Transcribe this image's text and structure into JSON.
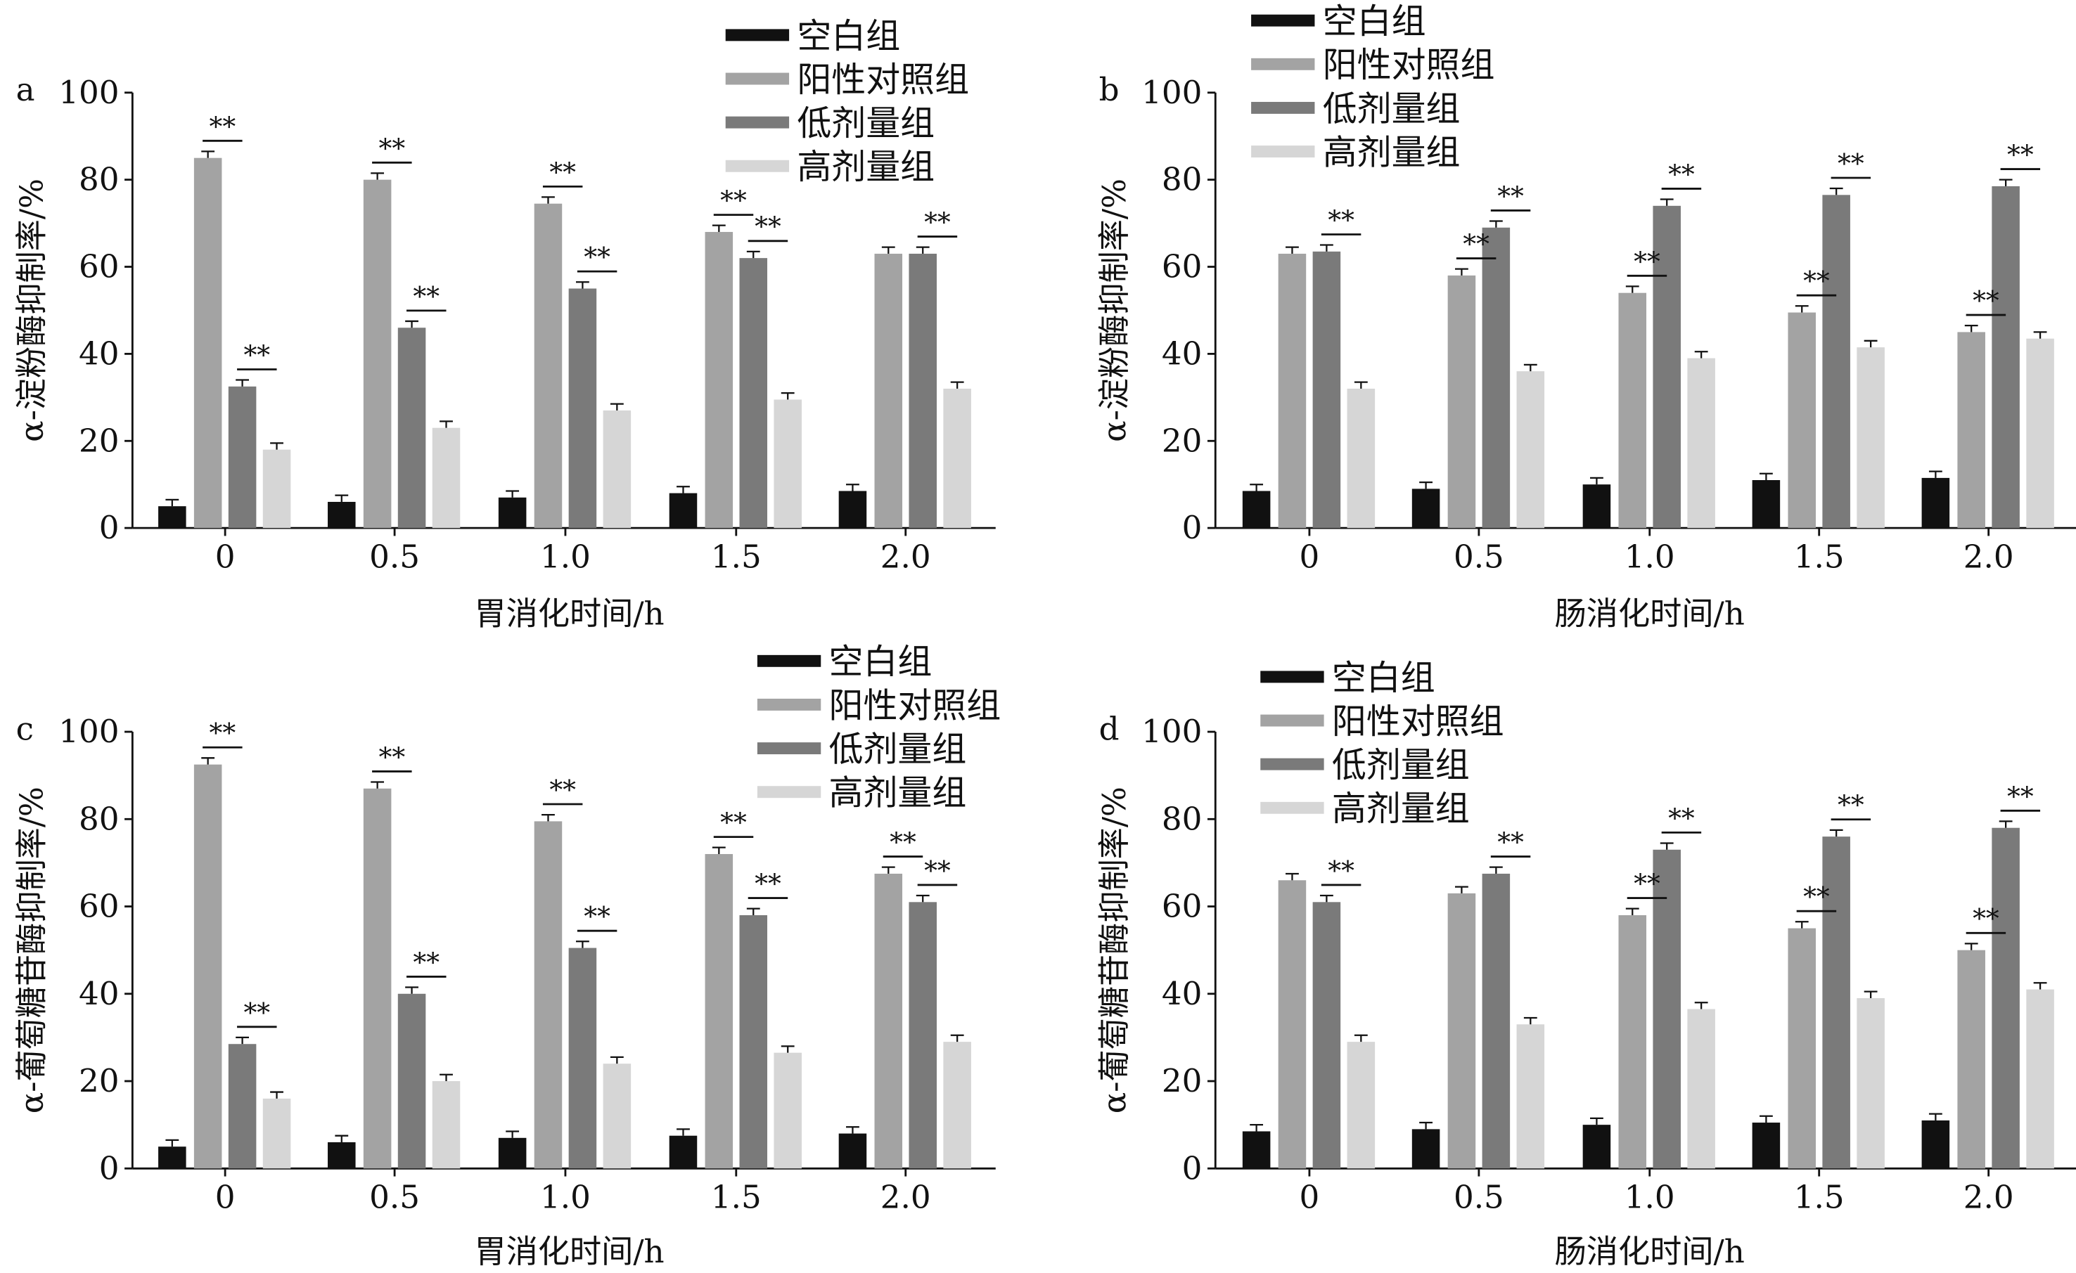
{
  "chart_data": [
    {
      "type": "bar",
      "panel": "a",
      "xlabel": "胃消化时间/h",
      "ylabel": "α-淀粉酶抑制率/%",
      "ylim": [
        0,
        100
      ],
      "yticks": [
        "0",
        "20",
        "40",
        "60",
        "80",
        "100"
      ],
      "categories": [
        "0",
        "0.5",
        "1.0",
        "1.5",
        "2.0"
      ],
      "series": [
        {
          "name": "空白组",
          "values": [
            5,
            6,
            7,
            8,
            8.5
          ]
        },
        {
          "name": "阳性对照组",
          "values": [
            85,
            80,
            74.5,
            68,
            63
          ]
        },
        {
          "name": "低剂量组",
          "values": [
            32.5,
            46,
            55,
            62,
            63
          ]
        },
        {
          "name": "高剂量组",
          "values": [
            18,
            23,
            27,
            29.5,
            32
          ]
        }
      ],
      "error": 1.5,
      "significance": [
        [
          0,
          1
        ],
        [
          0,
          2
        ],
        [
          1,
          1
        ],
        [
          1,
          2
        ],
        [
          2,
          1
        ],
        [
          2,
          2
        ],
        [
          3,
          1
        ],
        [
          3,
          2
        ],
        [
          4,
          2
        ]
      ],
      "sig_label": "**"
    },
    {
      "type": "bar",
      "panel": "b",
      "xlabel": "肠消化时间/h",
      "ylabel": "α-淀粉酶抑制率/%",
      "ylim": [
        0,
        100
      ],
      "yticks": [
        "0",
        "20",
        "40",
        "60",
        "80",
        "100"
      ],
      "categories": [
        "0",
        "0.5",
        "1.0",
        "1.5",
        "2.0"
      ],
      "series": [
        {
          "name": "空白组",
          "values": [
            8.5,
            9,
            10,
            11,
            11.5
          ]
        },
        {
          "name": "阳性对照组",
          "values": [
            63,
            58,
            54,
            49.5,
            45
          ]
        },
        {
          "name": "低剂量组",
          "values": [
            63.5,
            69,
            74,
            76.5,
            78.5
          ]
        },
        {
          "name": "高剂量组",
          "values": [
            32,
            36,
            39,
            41.5,
            43.5
          ]
        }
      ],
      "error": 1.5,
      "significance": [
        [
          0,
          2
        ],
        [
          1,
          1
        ],
        [
          1,
          2
        ],
        [
          2,
          1
        ],
        [
          2,
          2
        ],
        [
          3,
          1
        ],
        [
          3,
          2
        ],
        [
          4,
          1
        ],
        [
          4,
          2
        ]
      ],
      "sig_label": "**"
    },
    {
      "type": "bar",
      "panel": "c",
      "xlabel": "胃消化时间/h",
      "ylabel": "α-葡萄糖苷酶抑制率/%",
      "ylim": [
        0,
        100
      ],
      "yticks": [
        "0",
        "20",
        "40",
        "60",
        "80",
        "100"
      ],
      "categories": [
        "0",
        "0.5",
        "1.0",
        "1.5",
        "2.0"
      ],
      "series": [
        {
          "name": "空白组",
          "values": [
            5,
            6,
            7,
            7.5,
            8
          ]
        },
        {
          "name": "阳性对照组",
          "values": [
            92.5,
            87,
            79.5,
            72,
            67.5
          ]
        },
        {
          "name": "低剂量组",
          "values": [
            28.5,
            40,
            50.5,
            58,
            61
          ]
        },
        {
          "name": "高剂量组",
          "values": [
            16,
            20,
            24,
            26.5,
            29
          ]
        }
      ],
      "error": 1.5,
      "significance": [
        [
          0,
          1
        ],
        [
          0,
          2
        ],
        [
          1,
          1
        ],
        [
          1,
          2
        ],
        [
          2,
          1
        ],
        [
          2,
          2
        ],
        [
          3,
          1
        ],
        [
          3,
          2
        ],
        [
          4,
          1
        ],
        [
          4,
          2
        ]
      ],
      "sig_label": "**"
    },
    {
      "type": "bar",
      "panel": "d",
      "xlabel": "肠消化时间/h",
      "ylabel": "α-葡萄糖苷酶抑制率/%",
      "ylim": [
        0,
        100
      ],
      "yticks": [
        "0",
        "20",
        "40",
        "60",
        "80",
        "100"
      ],
      "categories": [
        "0",
        "0.5",
        "1.0",
        "1.5",
        "2.0"
      ],
      "series": [
        {
          "name": "空白组",
          "values": [
            8.5,
            9,
            10,
            10.5,
            11
          ]
        },
        {
          "name": "阳性对照组",
          "values": [
            66,
            63,
            58,
            55,
            50
          ]
        },
        {
          "name": "低剂量组",
          "values": [
            61,
            67.5,
            73,
            76,
            78
          ]
        },
        {
          "name": "高剂量组",
          "values": [
            29,
            33,
            36.5,
            39,
            41
          ]
        }
      ],
      "error": 1.5,
      "significance": [
        [
          0,
          2
        ],
        [
          1,
          2
        ],
        [
          2,
          1
        ],
        [
          2,
          2
        ],
        [
          3,
          1
        ],
        [
          3,
          2
        ],
        [
          4,
          1
        ],
        [
          4,
          2
        ]
      ],
      "sig_label": "**"
    }
  ],
  "colors": [
    "#111111",
    "#a3a3a3",
    "#7a7a7a",
    "#d6d6d6"
  ]
}
